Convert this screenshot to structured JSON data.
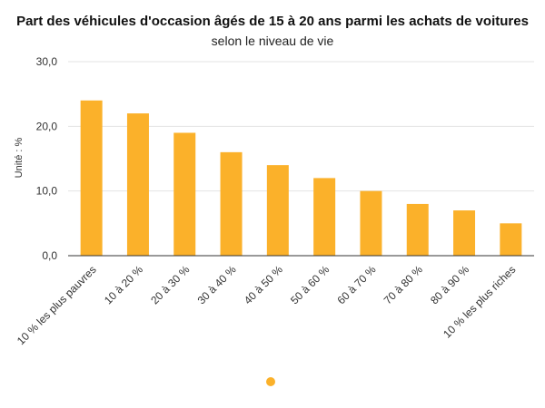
{
  "chart_data": {
    "type": "bar",
    "title": "Part des véhicules d'occasion âgés de 15 à 20 ans parmi les achats de voitures",
    "subtitle": "selon le niveau de vie",
    "ylabel": "Unité : %",
    "xlabel": "",
    "ylim": [
      0,
      30
    ],
    "yticks": [
      "0,0",
      "10,0",
      "20,0",
      "30,0"
    ],
    "ytick_values": [
      0,
      10,
      20,
      30
    ],
    "grid": true,
    "legend": "bottom",
    "categories": [
      "10 % les plus pauvres",
      "10 à 20 %",
      "20 à 30 %",
      "30 à 40 %",
      "40 à 50 %",
      "50 à 60 %",
      "60 à 70 %",
      "70 à 80 %",
      "80 à 90 %",
      "10 % les plus riches"
    ],
    "series": [
      {
        "color": "#FBB12A",
        "values": [
          24,
          22,
          19,
          16,
          14,
          12,
          10,
          8,
          7,
          5
        ]
      }
    ]
  }
}
